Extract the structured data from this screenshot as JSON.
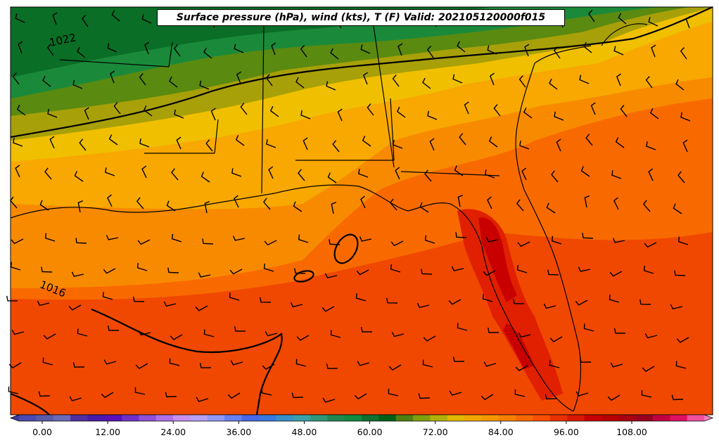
{
  "title": "Surface pressure (hPa), wind (kts), T (F) Valid: 202105120000f015",
  "isobar_labels": [
    {
      "text": "1022"
    },
    {
      "text": "1016"
    }
  ],
  "colorbar": {
    "ticks": [
      "0.00",
      "12.00",
      "24.00",
      "36.00",
      "48.00",
      "60.00",
      "72.00",
      "84.00",
      "96.00",
      "108.00"
    ],
    "tick_values": [
      0,
      12,
      24,
      36,
      48,
      60,
      72,
      84,
      96,
      108
    ],
    "min": -6,
    "max": 120,
    "step": 3,
    "colors": [
      "#3a3a9a",
      "#4a4ab0",
      "#5a5aa8",
      "#6a6ab8",
      "#5030a0",
      "#4a1aa8",
      "#5a10b8",
      "#7030c8",
      "#9050d8",
      "#b070e8",
      "#c890f0",
      "#b8a0f8",
      "#9098f8",
      "#6880f0",
      "#4868e8",
      "#3878e0",
      "#3890c8",
      "#3aa0a8",
      "#309878",
      "#208850",
      "#108a40",
      "#107030",
      "#006018",
      "#508010",
      "#80a010",
      "#b0b008",
      "#e0b800",
      "#f0a800",
      "#f89800",
      "#f88000",
      "#f86800",
      "#f85000",
      "#e83000",
      "#d81800",
      "#c80000",
      "#b80000",
      "#a80010",
      "#980020",
      "#c00040",
      "#e01060",
      "#f050a0",
      "#f880c0"
    ]
  },
  "map_colors": {
    "dark_green": "#0a6e26",
    "green": "#1a8a3a",
    "olive": "#5a8a10",
    "olive_yellow": "#a8a008",
    "yellow": "#f0c000",
    "orange_light": "#f8a800",
    "orange": "#f88a00",
    "orange_dark": "#f86a00",
    "red_orange": "#f04800",
    "red": "#e02000",
    "dark_red": "#c80000"
  }
}
